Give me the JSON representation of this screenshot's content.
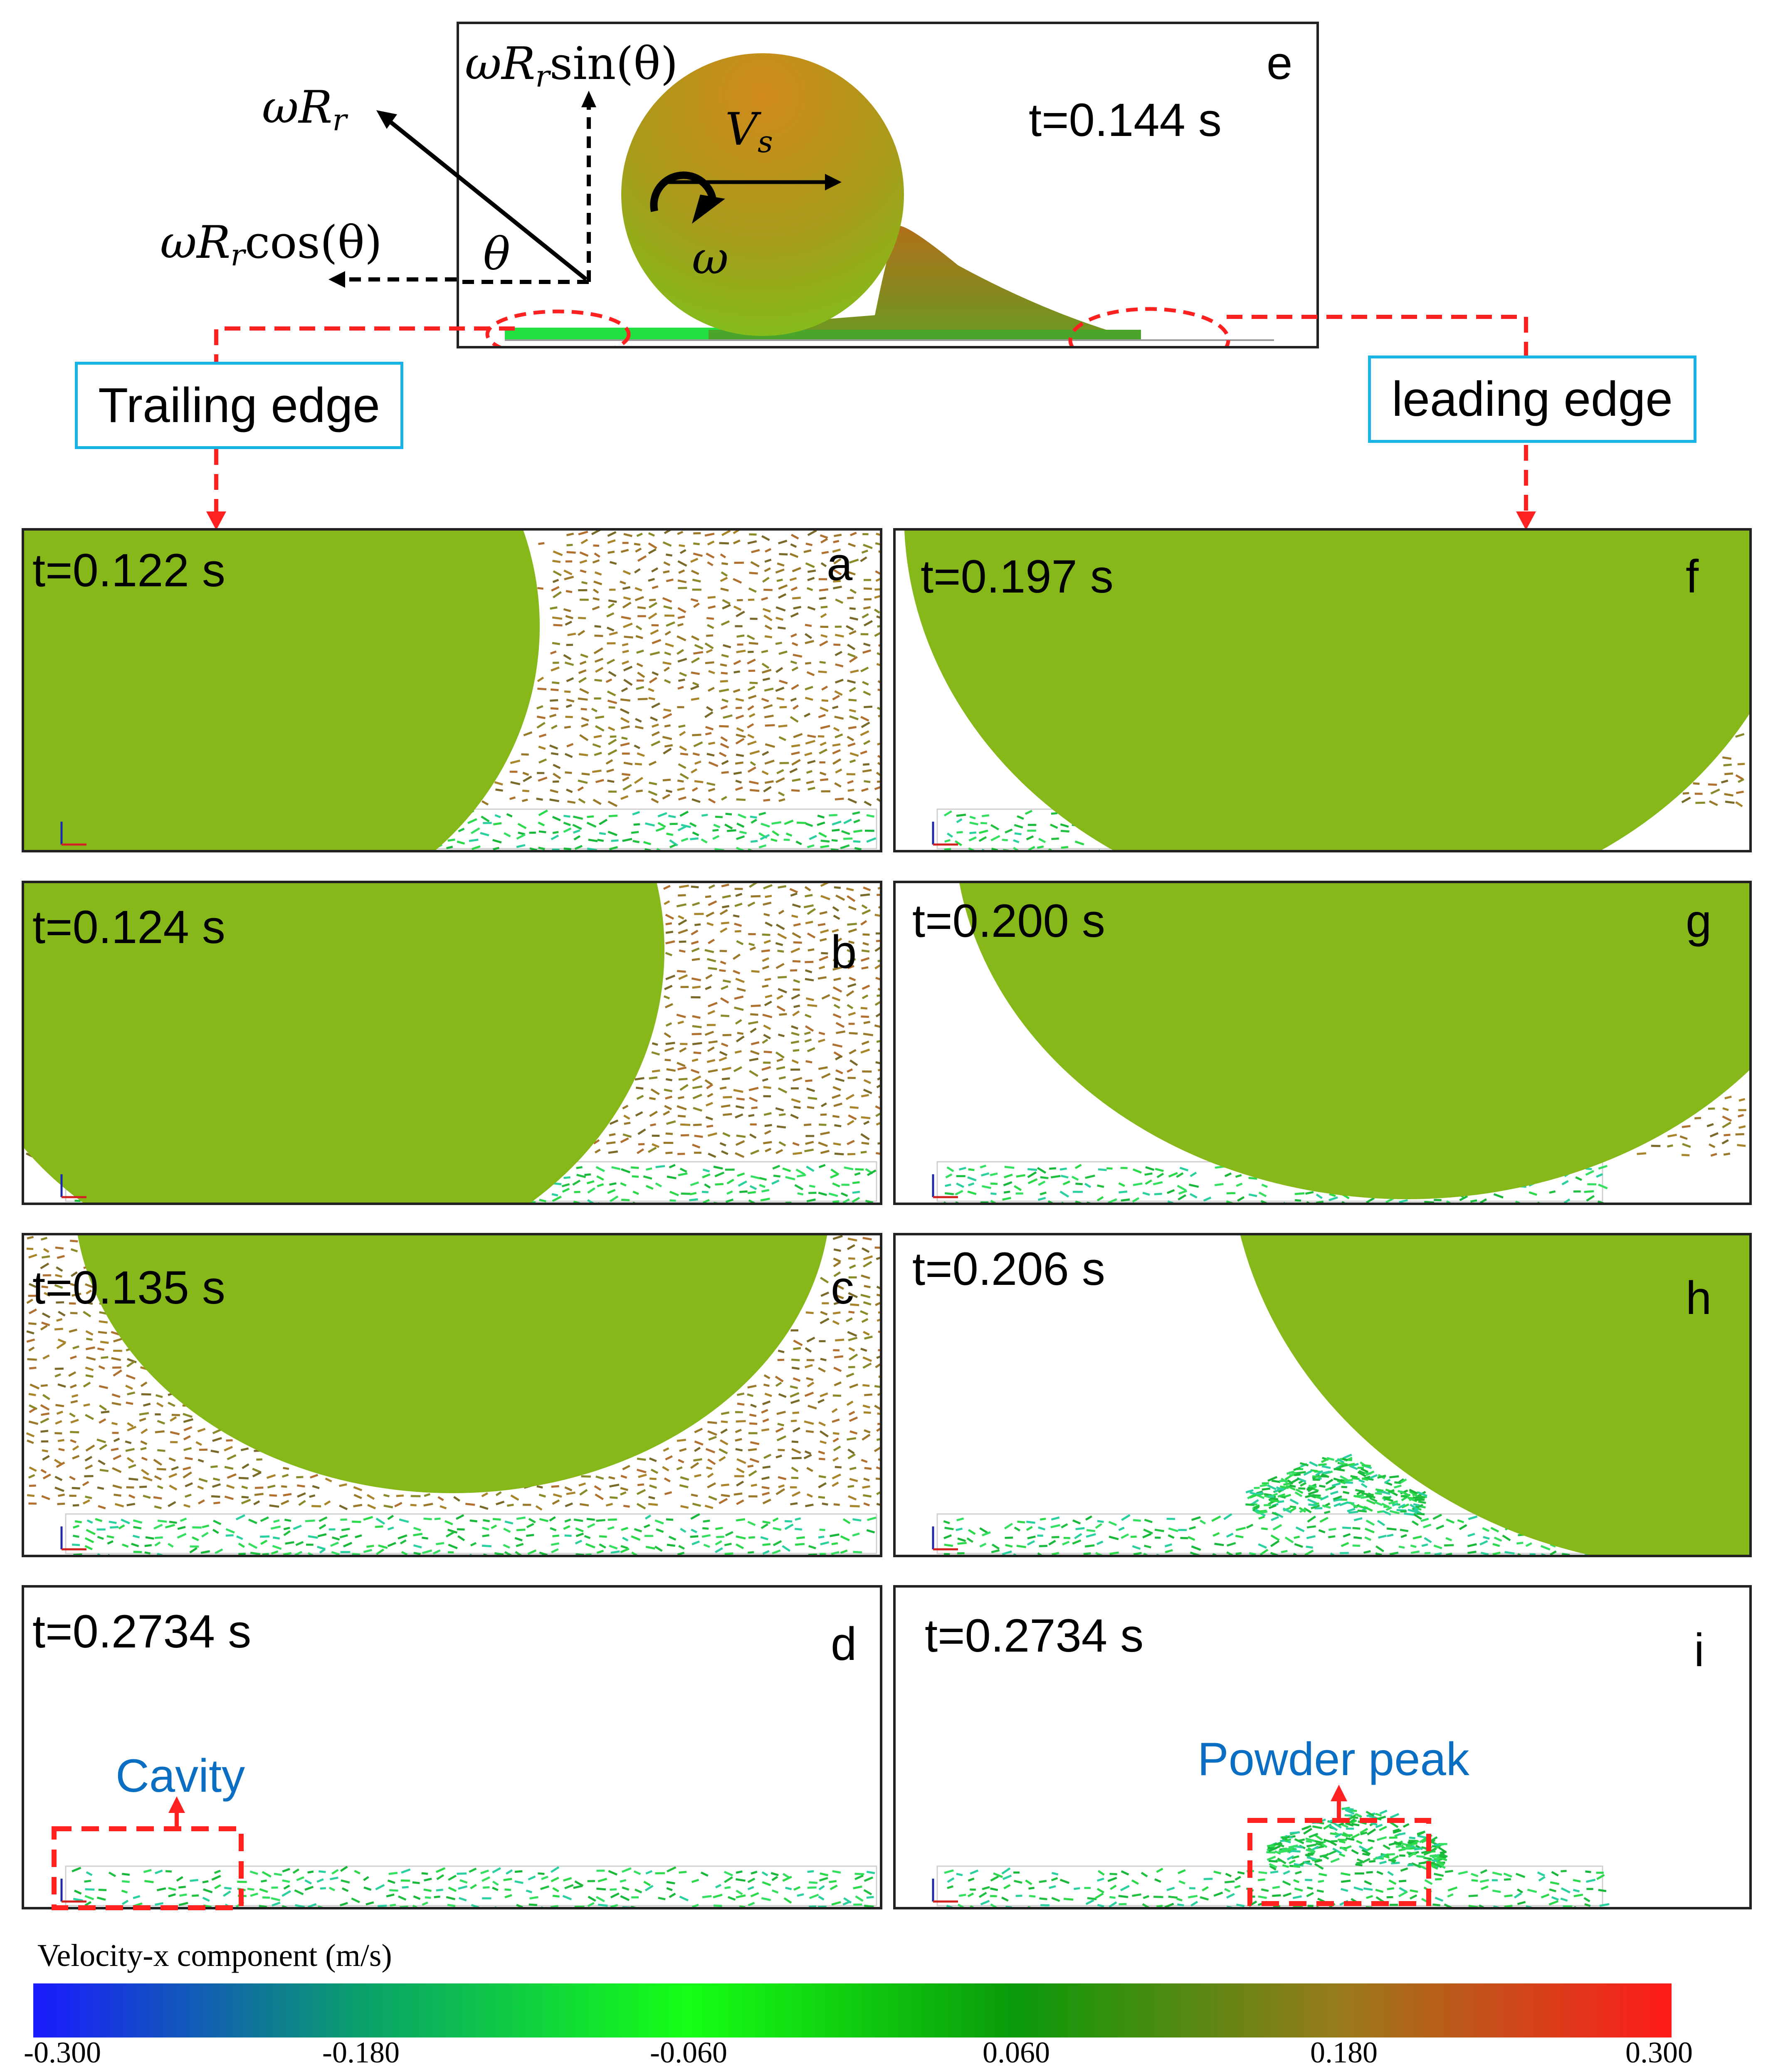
{
  "top_panel": {
    "letter": "e",
    "time": "t=0.144 s",
    "vs_label": "V",
    "vs_sub": "s",
    "omega_label": "ω",
    "theta_label": "θ",
    "formula_rr": {
      "w": "ωR",
      "sub": "r",
      "tail": ""
    },
    "formula_sin": {
      "w": "ωR",
      "sub": "r",
      "tail": "sin(θ)"
    },
    "formula_cos": {
      "w": "ωR",
      "sub": "r",
      "tail": "cos(θ)"
    }
  },
  "callouts": {
    "trailing": "Trailing edge",
    "leading": "leading edge"
  },
  "panels": [
    {
      "letter": "a",
      "time": "t=0.122 s"
    },
    {
      "letter": "b",
      "time": "t=0.124 s"
    },
    {
      "letter": "c",
      "time": "t=0.135 s"
    },
    {
      "letter": "d",
      "time": "t=0.2734 s"
    },
    {
      "letter": "f",
      "time": "t=0.197 s"
    },
    {
      "letter": "g",
      "time": "t=0.200 s"
    },
    {
      "letter": "h",
      "time": "t=0.206 s"
    },
    {
      "letter": "i",
      "time": "t=0.2734 s"
    }
  ],
  "annotations": {
    "cavity": "Cavity",
    "powder_peak": "Powder peak"
  },
  "colorbar": {
    "title": "Velocity-x component (m/s)",
    "ticks": [
      "-0.300",
      "-0.180",
      "-0.060",
      "0.060",
      "0.180",
      "0.300"
    ],
    "range": [
      -0.3,
      0.3
    ],
    "colors": [
      "#1a1aff",
      "#0aa06a",
      "#15ff15",
      "#0a9a0a",
      "#9a7a1a",
      "#ff1a1a"
    ]
  },
  "colors": {
    "roller": "#86b81a",
    "roller_top": "#c98a1a",
    "particle_green": "#22d74a",
    "particle_brown": "#9a7a2a",
    "dashed_red": "#ff2020",
    "callout_border": "#17b3e6"
  }
}
